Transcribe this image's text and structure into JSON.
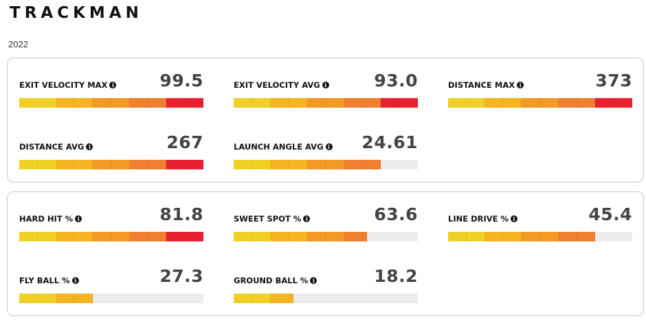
{
  "header": {
    "logo": "TRACKMAN",
    "year": "2022"
  },
  "palette": [
    "#f0d024",
    "#f0d024",
    "#f6b421",
    "#f6b421",
    "#f39a25",
    "#f39a25",
    "#f08030",
    "#f08030",
    "#e82030",
    "#e82030"
  ],
  "panels": [
    {
      "stats": [
        {
          "label": "EXIT VELOCITY MAX",
          "value": "99.5",
          "fill": 1.0
        },
        {
          "label": "EXIT VELOCITY AVG",
          "value": "93.0",
          "fill": 1.0
        },
        {
          "label": "DISTANCE MAX",
          "value": "373",
          "fill": 1.0
        },
        {
          "label": "DISTANCE AVG",
          "value": "267",
          "fill": 1.0
        },
        {
          "label": "LAUNCH ANGLE AVG",
          "value": "24.61",
          "fill": 0.8
        }
      ]
    },
    {
      "stats": [
        {
          "label": "HARD HIT %",
          "value": "81.8",
          "fill": 1.0
        },
        {
          "label": "SWEET SPOT %",
          "value": "63.6",
          "fill": 0.73
        },
        {
          "label": "LINE DRIVE %",
          "value": "45.4",
          "fill": 0.8
        },
        {
          "label": "FLY BALL %",
          "value": "27.3",
          "fill": 0.4
        },
        {
          "label": "GROUND BALL %",
          "value": "18.2",
          "fill": 0.33
        }
      ]
    }
  ]
}
